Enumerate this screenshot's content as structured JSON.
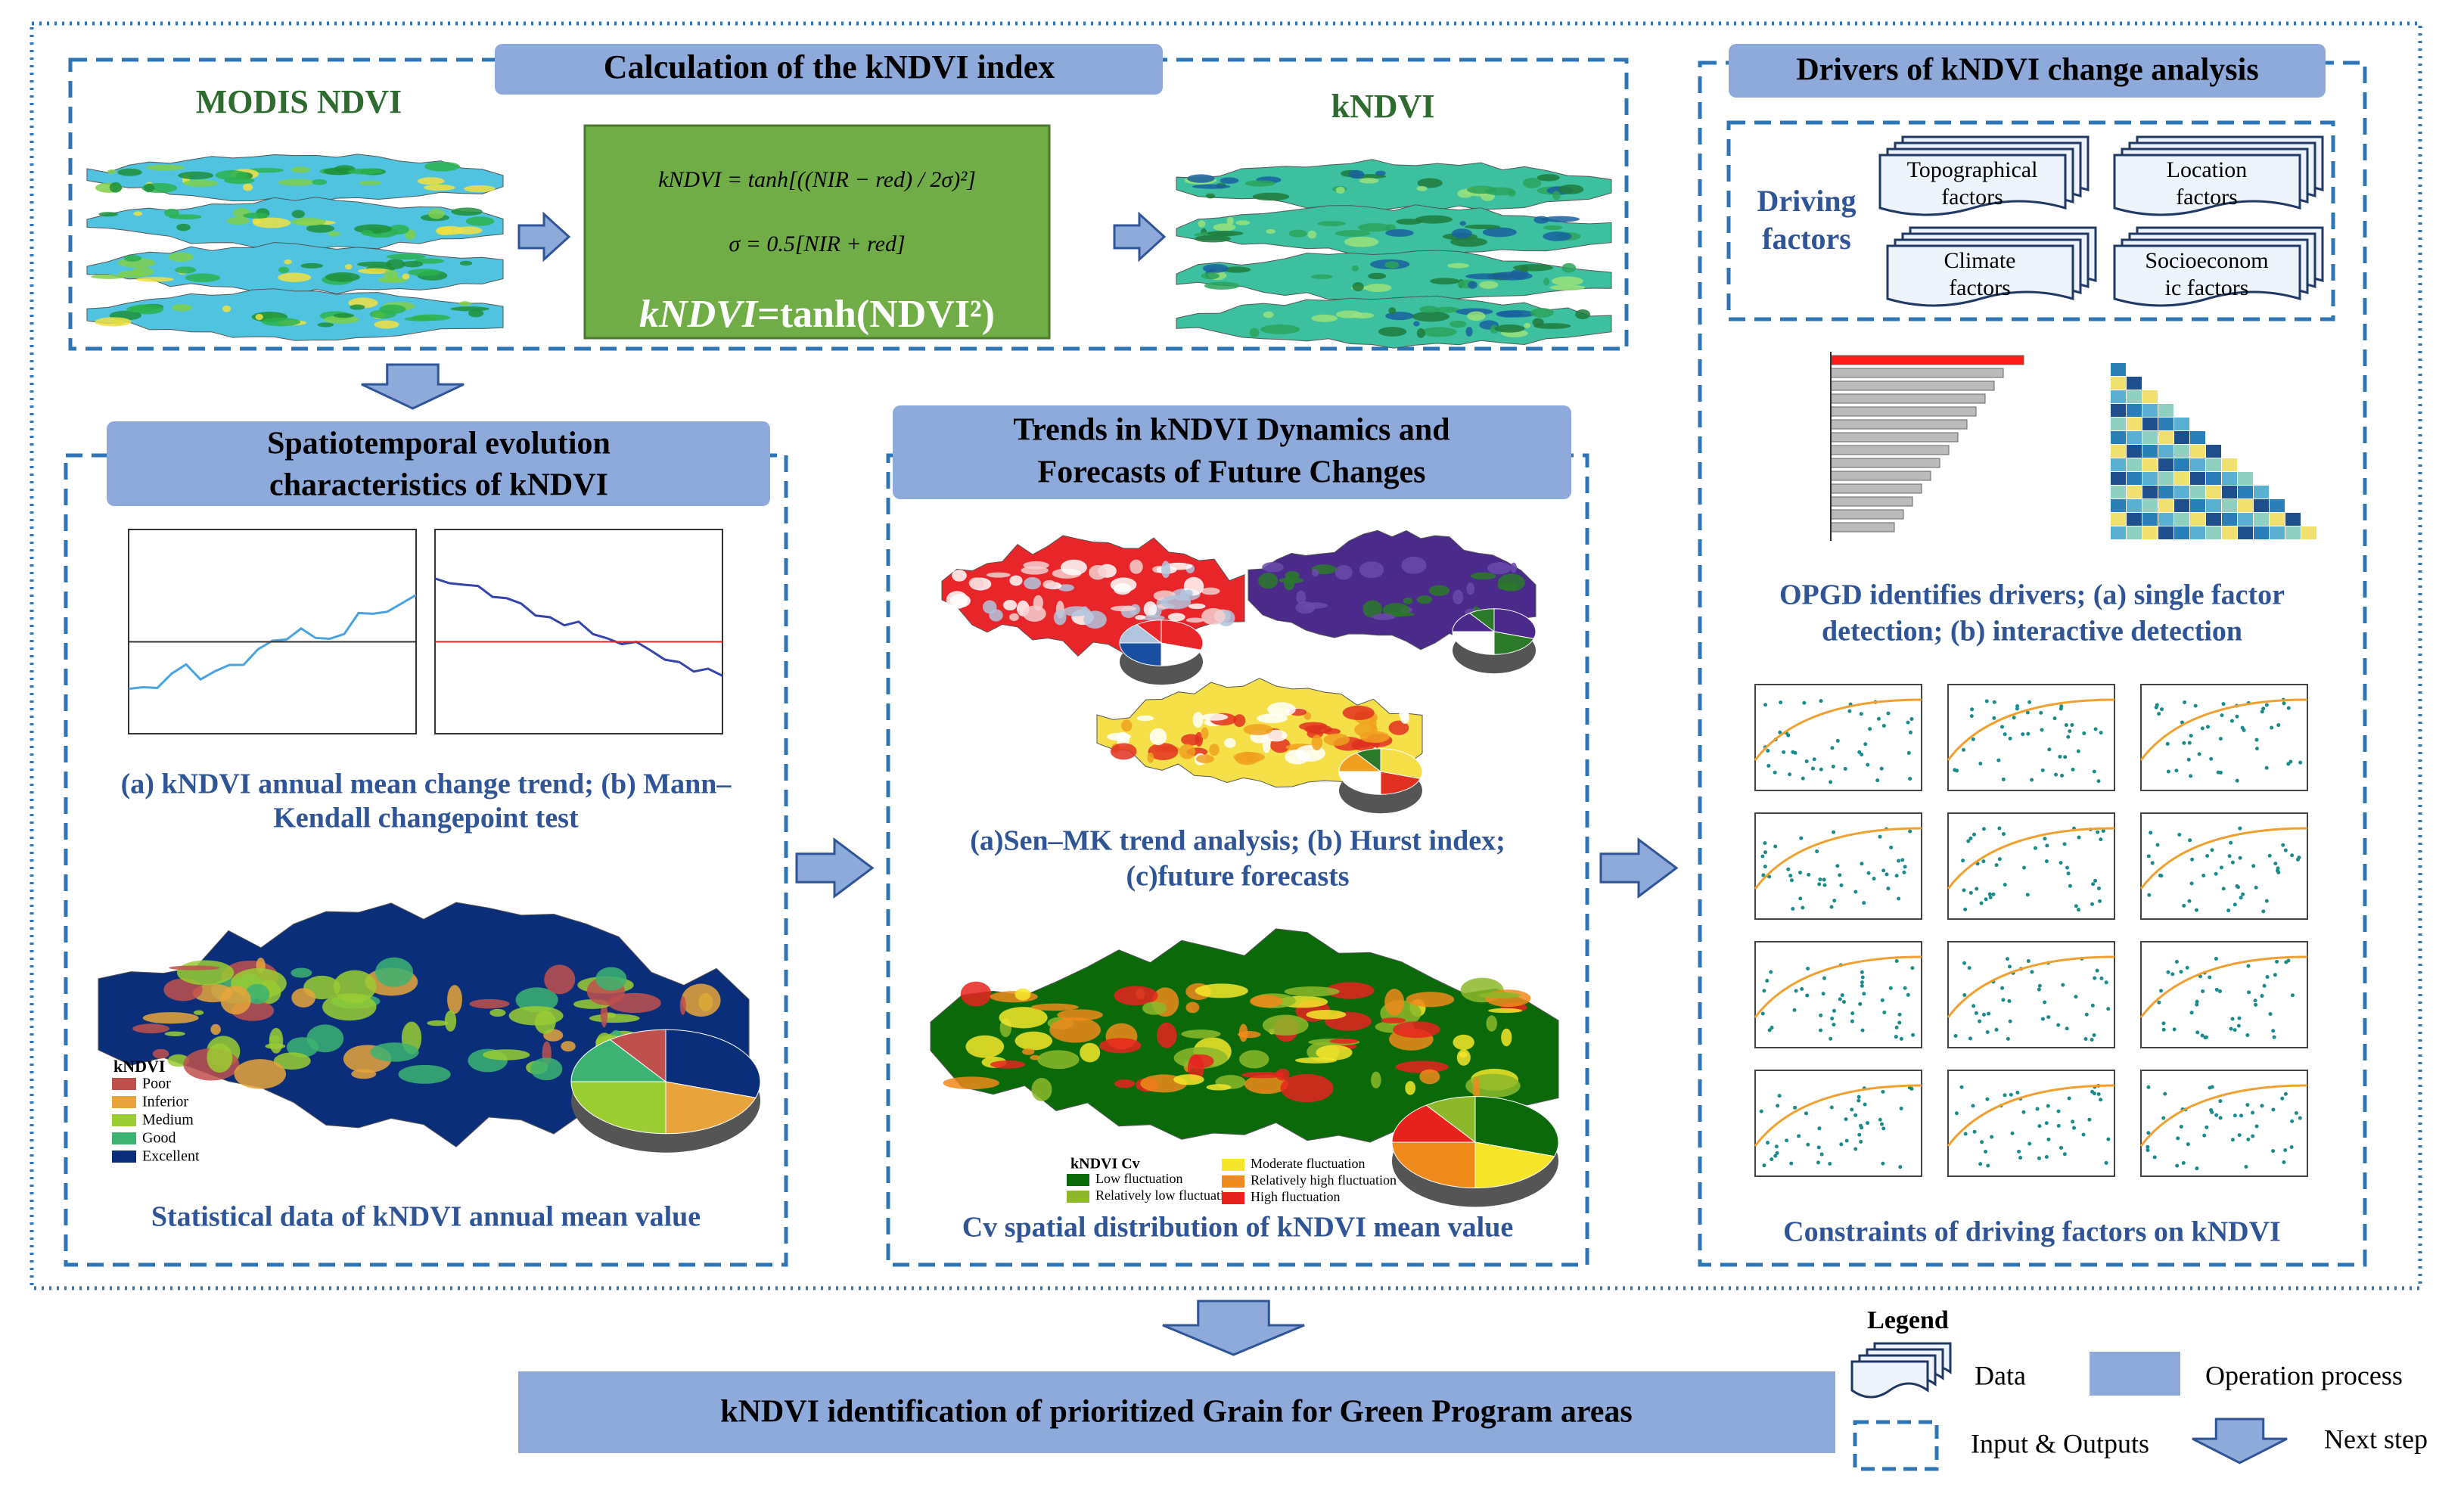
{
  "top": {
    "title": "Calculation of the kNDVI index",
    "input_label": "MODIS NDVI",
    "output_label": "kNDVI",
    "formulas": [
      "kNDVI = tanh[((NIR − red) / 2σ)²]",
      "σ = 0.5[NIR + red]"
    ],
    "main_formula": {
      "italic": "kNDVI",
      "rest": "=tanh(NDVI²)"
    }
  },
  "spatiotemporal": {
    "title": [
      "Spatiotemporal evolution",
      "characteristics of kNDVI"
    ],
    "caption1": [
      "(a) kNDVI annual mean change trend; (b) Mann–",
      "Kendall changepoint test"
    ],
    "legend_title": "kNDVI",
    "legend": [
      "Poor",
      "Inferior",
      "Medium",
      "Good",
      "Excellent"
    ],
    "caption2": "Statistical data of kNDVI annual mean value"
  },
  "trends": {
    "title": [
      "Trends in kNDVI Dynamics and",
      "Forecasts of Future Changes"
    ],
    "caption1": [
      "(a)Sen–MK trend analysis; (b) Hurst index;",
      "(c)future forecasts"
    ],
    "legend_title": "kNDVI Cv",
    "legend": [
      "Low fluctuation",
      "Relatively low fluctuation",
      "Moderate fluctuation",
      "Relatively high fluctuation",
      "High fluctuation"
    ],
    "caption2": "Cv spatial distribution of kNDVI mean value"
  },
  "drivers": {
    "title": "Drivers of kNDVI change analysis",
    "driving_label": [
      "Driving",
      "factors"
    ],
    "factors": [
      [
        "Topographical",
        "factors"
      ],
      [
        "Location",
        "factors"
      ],
      [
        "Climate",
        "factors"
      ],
      [
        "Socioeconom",
        "ic factors"
      ]
    ],
    "caption1": [
      "OPGD identifies drivers; (a) single factor",
      "detection; (b) interactive detection"
    ],
    "caption2": "Constraints  of  driving factors on kNDVI"
  },
  "bottom": {
    "title": "kNDVI identification of prioritized Grain for Green Program areas"
  },
  "legend": {
    "title": "Legend",
    "items": [
      "Data",
      "Operation process",
      "Input & Outputs",
      "Next step"
    ]
  }
}
